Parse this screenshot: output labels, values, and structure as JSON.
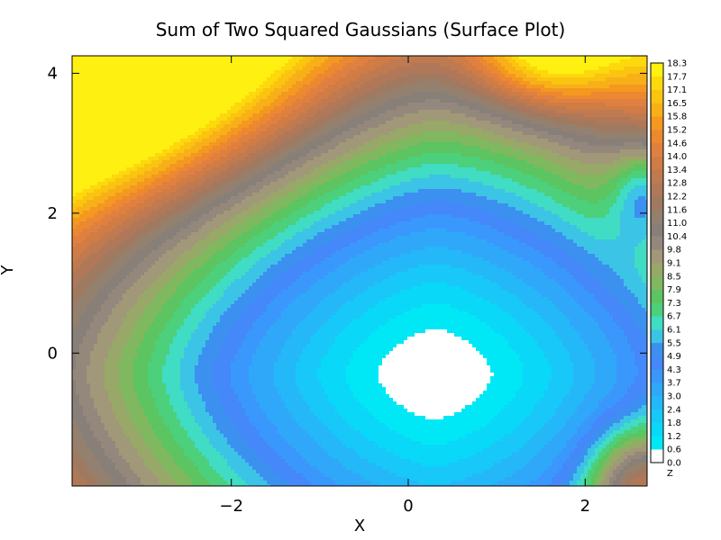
{
  "chart_data": {
    "type": "heatmap",
    "subtype": "filled-contour",
    "title": "Sum of Two Squared Gaussians (Surface Plot)",
    "xlabel": "X",
    "ylabel": "Y",
    "xlim": [
      -3.8,
      2.7
    ],
    "ylim": [
      -1.9,
      4.25
    ],
    "xticks": [
      -2,
      0,
      2
    ],
    "xtick_labels": [
      "−2",
      "0",
      "2"
    ],
    "yticks": [
      0,
      2,
      4
    ],
    "ytick_labels": [
      "0",
      "2",
      "4"
    ],
    "grid": false,
    "colorbar": {
      "label": "Z",
      "levels": [
        0.0,
        0.6,
        1.2,
        1.8,
        2.4,
        3.0,
        3.7,
        4.3,
        4.9,
        5.5,
        6.1,
        6.7,
        7.3,
        7.9,
        8.5,
        9.1,
        9.8,
        10.4,
        11.0,
        11.6,
        12.2,
        12.8,
        13.4,
        14.0,
        14.6,
        15.2,
        15.8,
        16.5,
        17.1,
        17.7,
        18.3
      ],
      "colors": [
        "#ffffff",
        "#00e8f6",
        "#0ad8f8",
        "#18c8f8",
        "#24b8f8",
        "#30a8fa",
        "#3a98fc",
        "#4488fa",
        "#3c90f0",
        "#3cc4e6",
        "#40dcc4",
        "#4cd07c",
        "#5cc460",
        "#80b860",
        "#98a868",
        "#a09878",
        "#94887c",
        "#888078",
        "#94806e",
        "#a07a60",
        "#b07858",
        "#c07a50",
        "#d07c44",
        "#e08040",
        "#ec8830",
        "#f49820",
        "#f8b018",
        "#fac410",
        "#fcd80c",
        "#fef010",
        "#000000"
      ]
    },
    "surface": {
      "min": {
        "x": 0.3,
        "y": -0.3,
        "z": 0.0
      },
      "max": {
        "x": -3.8,
        "y": 4.25,
        "z": 18.3
      }
    }
  }
}
